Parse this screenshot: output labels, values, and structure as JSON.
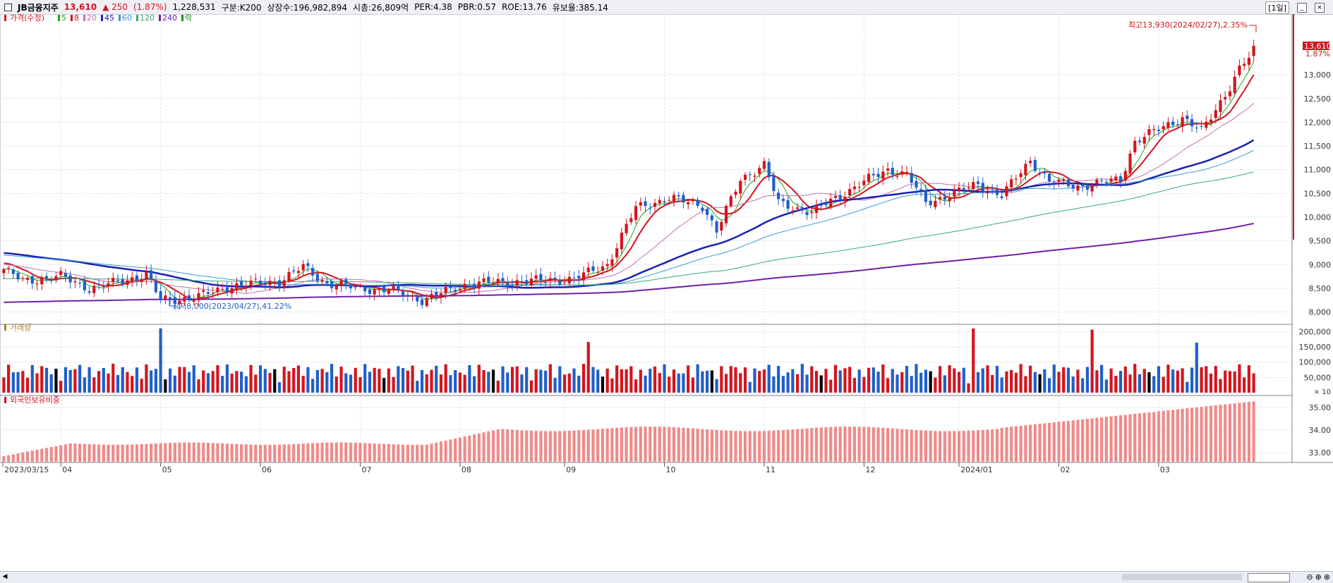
{
  "header": {
    "name": "JB금융지주",
    "price": "13,610",
    "change": "▲ 250",
    "change_pct": "(1.87%)",
    "volume": "1,228,531",
    "category": "구분:K200",
    "shares": "상장수:196,982,894",
    "market_cap": "시총:26,809억",
    "per": "PER:4.38",
    "pbr": "PBR:0.57",
    "roe": "ROE:13.76",
    "reserve_ratio": "유보율:385.14",
    "period_button": "[1일]"
  },
  "colors": {
    "up": "#d4141d",
    "down": "#1f5fc8",
    "flat": "#000000",
    "ma5": "#18a818",
    "ma8": "#d4141d",
    "ma20": "#c070b0",
    "ma45": "#1a22b0",
    "ma60": "#3a9ad8",
    "ma120": "#38a878",
    "ma240": "#7020a8",
    "foreign": "#f08a8a",
    "grid": "#d8dde8"
  },
  "legend": {
    "price_label": "가격(수정)",
    "ma": [
      {
        "label": "5",
        "color": "#18a818"
      },
      {
        "label": "8",
        "color": "#d4141d"
      },
      {
        "label": "20",
        "color": "#c070b0"
      },
      {
        "label": "45",
        "color": "#1a22b0"
      },
      {
        "label": "60",
        "color": "#3a9ad8"
      },
      {
        "label": "120",
        "color": "#38a878"
      },
      {
        "label": "240",
        "color": "#7020a8"
      },
      {
        "label": "락",
        "color": "#228822"
      }
    ],
    "volume_label": "거래량",
    "foreign_label": "외국인보유비중"
  },
  "annotations": {
    "high": "최고13,930(2024/02/27),2.35%",
    "low": "최저8,000(2023/04/27),41.22%",
    "current_price_tag": "13,610",
    "current_pct_tag": "1.87%"
  },
  "chart_data": {
    "type": "candlestick",
    "x_axis": {
      "labels": [
        "2023/03/15",
        "04",
        "05",
        "06",
        "07",
        "08",
        "09",
        "10",
        "11",
        "12",
        "2024/01",
        "02",
        "03"
      ]
    },
    "price_axis": {
      "ylim": [
        7800,
        14250
      ],
      "ticks": [
        "8,000",
        "8,500",
        "9,000",
        "9,500",
        "10,000",
        "10,500",
        "11,000",
        "11,500",
        "12,000",
        "12,500",
        "13,000"
      ]
    },
    "volume_axis": {
      "ylim": [
        0,
        215000
      ],
      "ticks": [
        "50,000",
        "100,000",
        "150,000",
        "200,000"
      ],
      "unit": "× 10"
    },
    "foreign_axis": {
      "ylim": [
        32.6,
        35.4
      ],
      "ticks": [
        "33.00",
        "34.00",
        "35.00"
      ]
    },
    "anchors": [
      [
        0,
        8900
      ],
      [
        4,
        8650
      ],
      [
        12,
        8750
      ],
      [
        18,
        8500
      ],
      [
        25,
        8650
      ],
      [
        30,
        8800
      ],
      [
        33,
        8250
      ],
      [
        40,
        8300
      ],
      [
        48,
        8550
      ],
      [
        58,
        8650
      ],
      [
        63,
        8950
      ],
      [
        68,
        8600
      ],
      [
        75,
        8500
      ],
      [
        82,
        8450
      ],
      [
        88,
        8250
      ],
      [
        98,
        8600
      ],
      [
        110,
        8650
      ],
      [
        120,
        8700
      ],
      [
        127,
        9000
      ],
      [
        133,
        10200
      ],
      [
        140,
        10400
      ],
      [
        147,
        10250
      ],
      [
        150,
        9700
      ],
      [
        155,
        10800
      ],
      [
        160,
        11100
      ],
      [
        163,
        10300
      ],
      [
        170,
        10100
      ],
      [
        175,
        10400
      ],
      [
        182,
        10800
      ],
      [
        186,
        11000
      ],
      [
        190,
        10900
      ],
      [
        194,
        10300
      ],
      [
        200,
        10500
      ],
      [
        205,
        10700
      ],
      [
        210,
        10450
      ],
      [
        216,
        11200
      ],
      [
        220,
        10750
      ],
      [
        226,
        10650
      ],
      [
        230,
        10700
      ],
      [
        235,
        10800
      ],
      [
        238,
        11600
      ],
      [
        245,
        11950
      ],
      [
        248,
        12100
      ],
      [
        252,
        11800
      ],
      [
        258,
        12750
      ],
      [
        260,
        13120
      ],
      [
        262,
        13360
      ],
      [
        263,
        13610
      ]
    ],
    "n_days": 264,
    "ma_periods": [
      5,
      8,
      20,
      45,
      60,
      120,
      240
    ],
    "ma_seed": {
      "ma20": 9000,
      "ma45": 9250,
      "ma60": 9200,
      "ma120": 8700,
      "ma240": 8200
    }
  }
}
